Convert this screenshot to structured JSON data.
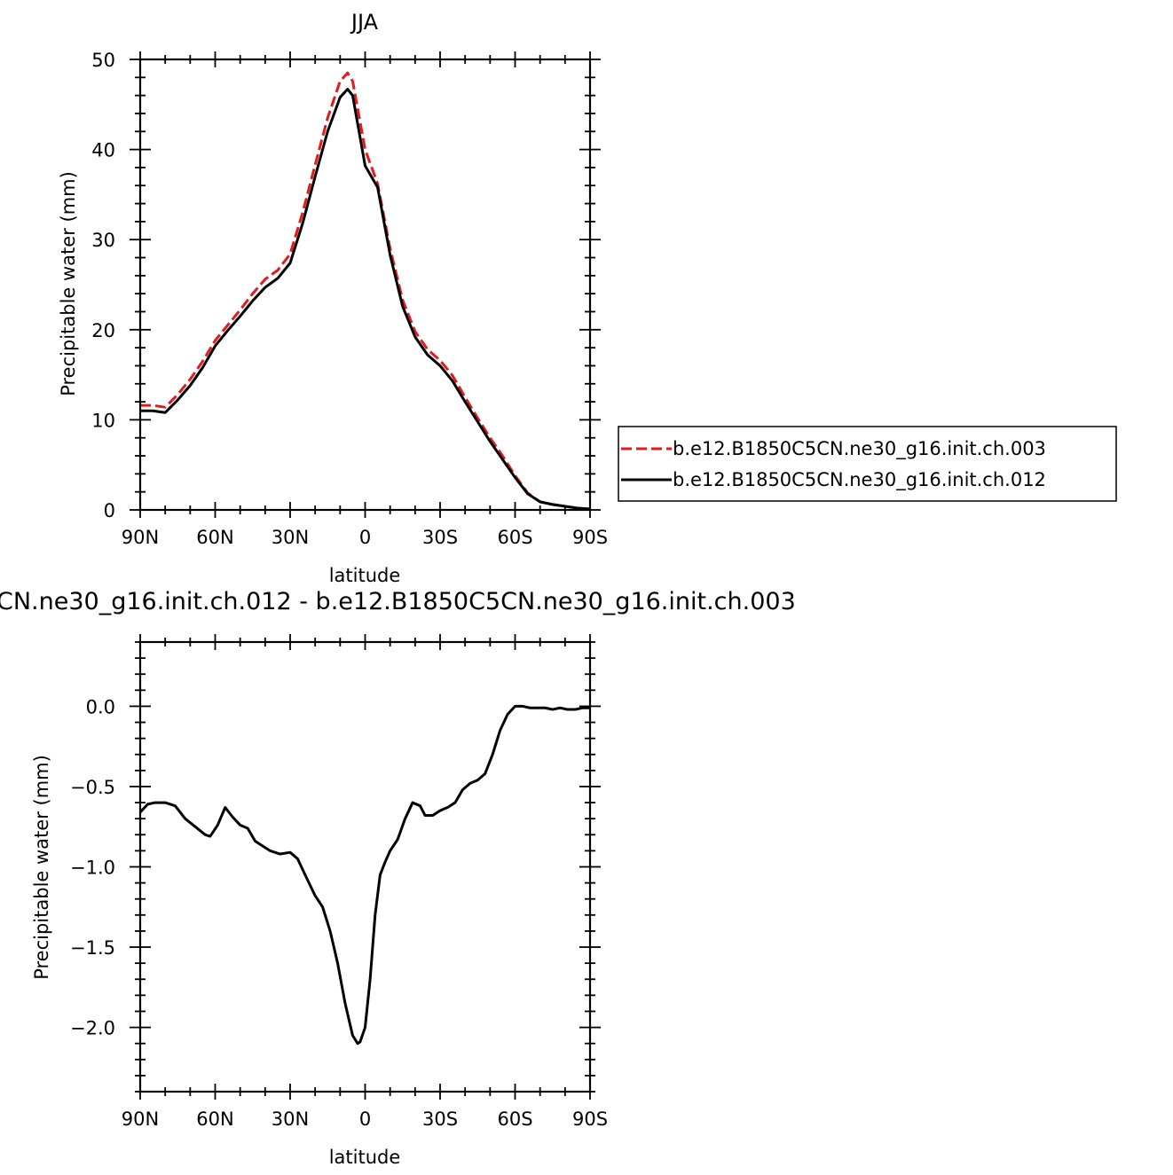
{
  "chart_data": [
    {
      "type": "line",
      "title": "JJA",
      "xlabel": "latitude",
      "ylabel": "Precipitable water (mm)",
      "xlim": [
        90,
        -90
      ],
      "ylim": [
        0,
        50
      ],
      "xtick_labels": [
        "90N",
        "60N",
        "30N",
        "0",
        "30S",
        "60S",
        "90S"
      ],
      "ytick_labels": [
        "0",
        "10",
        "20",
        "30",
        "40",
        "50"
      ],
      "legend_position": "right",
      "series": [
        {
          "name": "b.e12.B1850C5CN.ne30_g16.init.ch.003",
          "color": "#e41a1c",
          "style": "dashed",
          "x": [
            90,
            85,
            80,
            75,
            70,
            65,
            60,
            55,
            50,
            45,
            40,
            35,
            30,
            25,
            20,
            15,
            10,
            7,
            5,
            0,
            -5,
            -10,
            -15,
            -20,
            -25,
            -30,
            -35,
            -40,
            -45,
            -50,
            -55,
            -60,
            -65,
            -70,
            -75,
            -80,
            -85,
            -90
          ],
          "y": [
            11.6,
            11.6,
            11.4,
            12.8,
            14.5,
            16.5,
            18.8,
            20.5,
            22.2,
            24.0,
            25.6,
            26.6,
            28.4,
            33.0,
            38.3,
            43.5,
            47.6,
            48.5,
            47.6,
            40.0,
            36.2,
            29.0,
            23.3,
            19.8,
            17.8,
            16.6,
            14.9,
            12.5,
            10.2,
            8.0,
            6.0,
            3.8,
            1.9,
            0.9,
            0.6,
            0.4,
            0.2,
            0.1
          ]
        },
        {
          "name": "b.e12.B1850C5CN.ne30_g16.init.ch.012",
          "color": "#000000",
          "style": "solid",
          "x": [
            90,
            85,
            80,
            75,
            70,
            65,
            60,
            55,
            50,
            45,
            40,
            35,
            30,
            25,
            20,
            15,
            10,
            7,
            5,
            0,
            -5,
            -10,
            -15,
            -20,
            -25,
            -30,
            -35,
            -40,
            -45,
            -50,
            -55,
            -60,
            -65,
            -70,
            -75,
            -80,
            -85,
            -90
          ],
          "y": [
            11.0,
            11.0,
            10.8,
            12.2,
            13.8,
            15.8,
            18.2,
            19.9,
            21.5,
            23.2,
            24.7,
            25.7,
            27.4,
            31.8,
            37.0,
            42.0,
            45.8,
            46.7,
            46.0,
            38.2,
            35.8,
            28.3,
            22.6,
            19.2,
            17.2,
            16.0,
            14.3,
            12.0,
            9.8,
            7.6,
            5.6,
            3.6,
            1.8,
            0.9,
            0.6,
            0.4,
            0.2,
            0.1
          ]
        }
      ]
    },
    {
      "type": "line",
      "title": "CN.ne30_g16.init.ch.012 - b.e12.B1850C5CN.ne30_g16.init.ch.003",
      "xlabel": "latitude",
      "ylabel": "Precipitable water (mm)",
      "xlim": [
        90,
        -90
      ],
      "ylim": [
        -2.4,
        0.4
      ],
      "xtick_labels": [
        "90N",
        "60N",
        "30N",
        "0",
        "30S",
        "60S",
        "90S"
      ],
      "ytick_labels": [
        "0.0",
        "-0.5",
        "-1.0",
        "-1.5",
        "-2.0"
      ],
      "series": [
        {
          "color": "#000000",
          "style": "solid",
          "x": [
            90,
            87,
            84,
            80,
            76,
            72,
            68,
            64,
            62,
            59,
            56,
            53,
            50,
            47,
            44,
            41,
            38,
            34,
            30,
            27,
            24,
            20,
            17,
            14,
            11,
            8,
            5,
            3,
            2,
            0,
            -2,
            -4,
            -6,
            -8,
            -10,
            -13,
            -16,
            -19,
            -22,
            -24,
            -27,
            -30,
            -33,
            -36,
            -39,
            -42,
            -45,
            -48,
            -51,
            -54,
            -57,
            -60,
            -63,
            -66,
            -69,
            -72,
            -75,
            -78,
            -81,
            -84,
            -87,
            -90
          ],
          "y": [
            -0.66,
            -0.61,
            -0.6,
            -0.6,
            -0.62,
            -0.7,
            -0.75,
            -0.8,
            -0.81,
            -0.74,
            -0.63,
            -0.69,
            -0.74,
            -0.76,
            -0.84,
            -0.87,
            -0.9,
            -0.92,
            -0.91,
            -0.95,
            -1.05,
            -1.18,
            -1.25,
            -1.4,
            -1.6,
            -1.85,
            -2.05,
            -2.1,
            -2.09,
            -2.0,
            -1.7,
            -1.3,
            -1.05,
            -0.97,
            -0.9,
            -0.83,
            -0.7,
            -0.6,
            -0.62,
            -0.68,
            -0.68,
            -0.65,
            -0.63,
            -0.6,
            -0.52,
            -0.48,
            -0.46,
            -0.42,
            -0.3,
            -0.15,
            -0.05,
            0.0,
            0.0,
            -0.01,
            -0.01,
            -0.01,
            -0.02,
            -0.01,
            -0.02,
            -0.02,
            -0.01,
            -0.01
          ]
        }
      ]
    }
  ]
}
